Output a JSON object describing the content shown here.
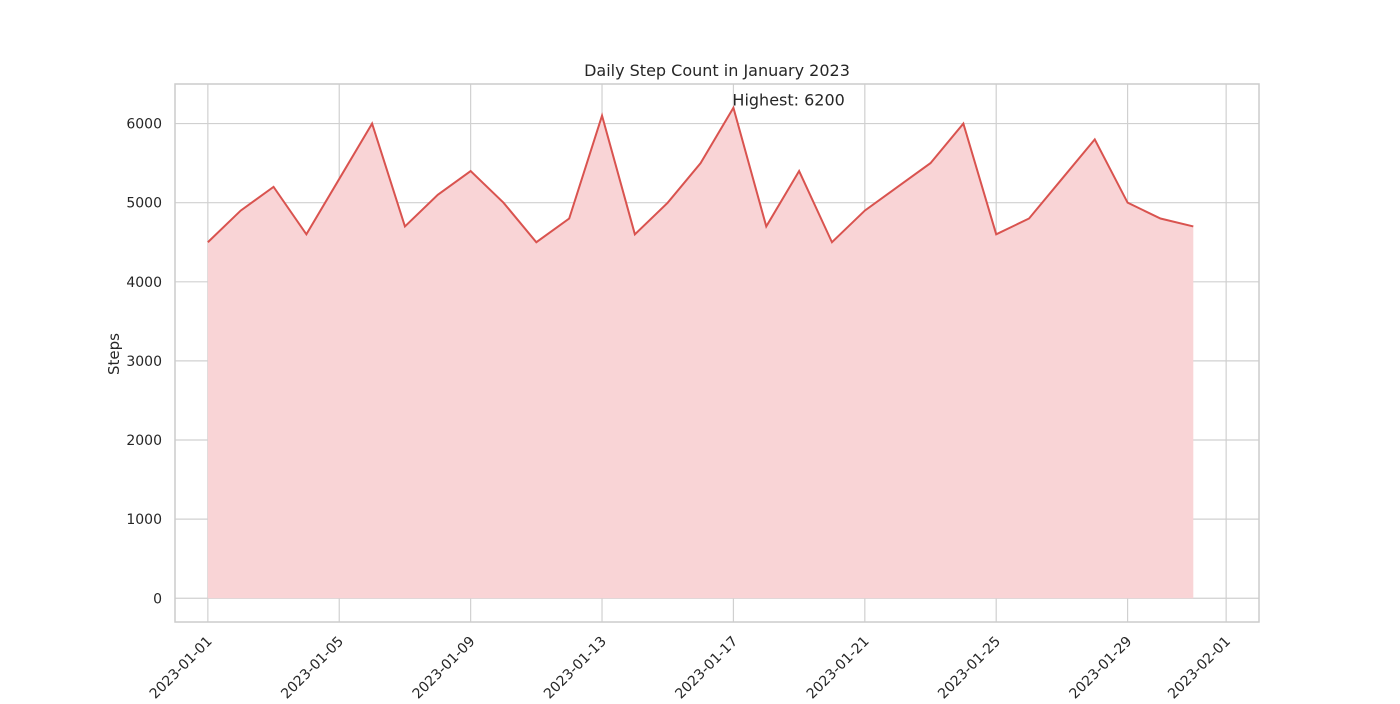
{
  "chart_data": {
    "type": "area",
    "title": "Daily Step Count in January 2023",
    "xlabel": "",
    "ylabel": "Steps",
    "x": [
      "2023-01-01",
      "2023-01-02",
      "2023-01-03",
      "2023-01-04",
      "2023-01-05",
      "2023-01-06",
      "2023-01-07",
      "2023-01-08",
      "2023-01-09",
      "2023-01-10",
      "2023-01-11",
      "2023-01-12",
      "2023-01-13",
      "2023-01-14",
      "2023-01-15",
      "2023-01-16",
      "2023-01-17",
      "2023-01-18",
      "2023-01-19",
      "2023-01-20",
      "2023-01-21",
      "2023-01-22",
      "2023-01-23",
      "2023-01-24",
      "2023-01-25",
      "2023-01-26",
      "2023-01-27",
      "2023-01-28",
      "2023-01-29",
      "2023-01-30",
      "2023-01-31"
    ],
    "series": [
      {
        "values": [
          4500,
          4900,
          5200,
          4600,
          5300,
          6000,
          4700,
          5100,
          5400,
          5000,
          4500,
          4800,
          6100,
          4600,
          5000,
          5500,
          6200,
          4700,
          5400,
          4500,
          4900,
          5200,
          5500,
          6000,
          4600,
          4800,
          5300,
          5800,
          5000,
          4800,
          4700
        ]
      }
    ],
    "xlim": [
      "2022-12-31",
      "2023-02-02"
    ],
    "ylim": [
      -300,
      6500
    ],
    "x_ticks": [
      "2023-01-01",
      "2023-01-05",
      "2023-01-09",
      "2023-01-13",
      "2023-01-17",
      "2023-01-21",
      "2023-01-25",
      "2023-01-29",
      "2023-02-01"
    ],
    "y_ticks": [
      0,
      1000,
      2000,
      3000,
      4000,
      5000,
      6000
    ],
    "grid": true,
    "legend": "none",
    "annotations": [
      {
        "text": "Highest: 6200",
        "x": "2023-01-17",
        "y": 6200
      }
    ],
    "colors": {
      "line": "#d9534f",
      "fill": "#f9d4d6",
      "grid": "#d0d0d0",
      "axis": "#cccccc"
    }
  }
}
